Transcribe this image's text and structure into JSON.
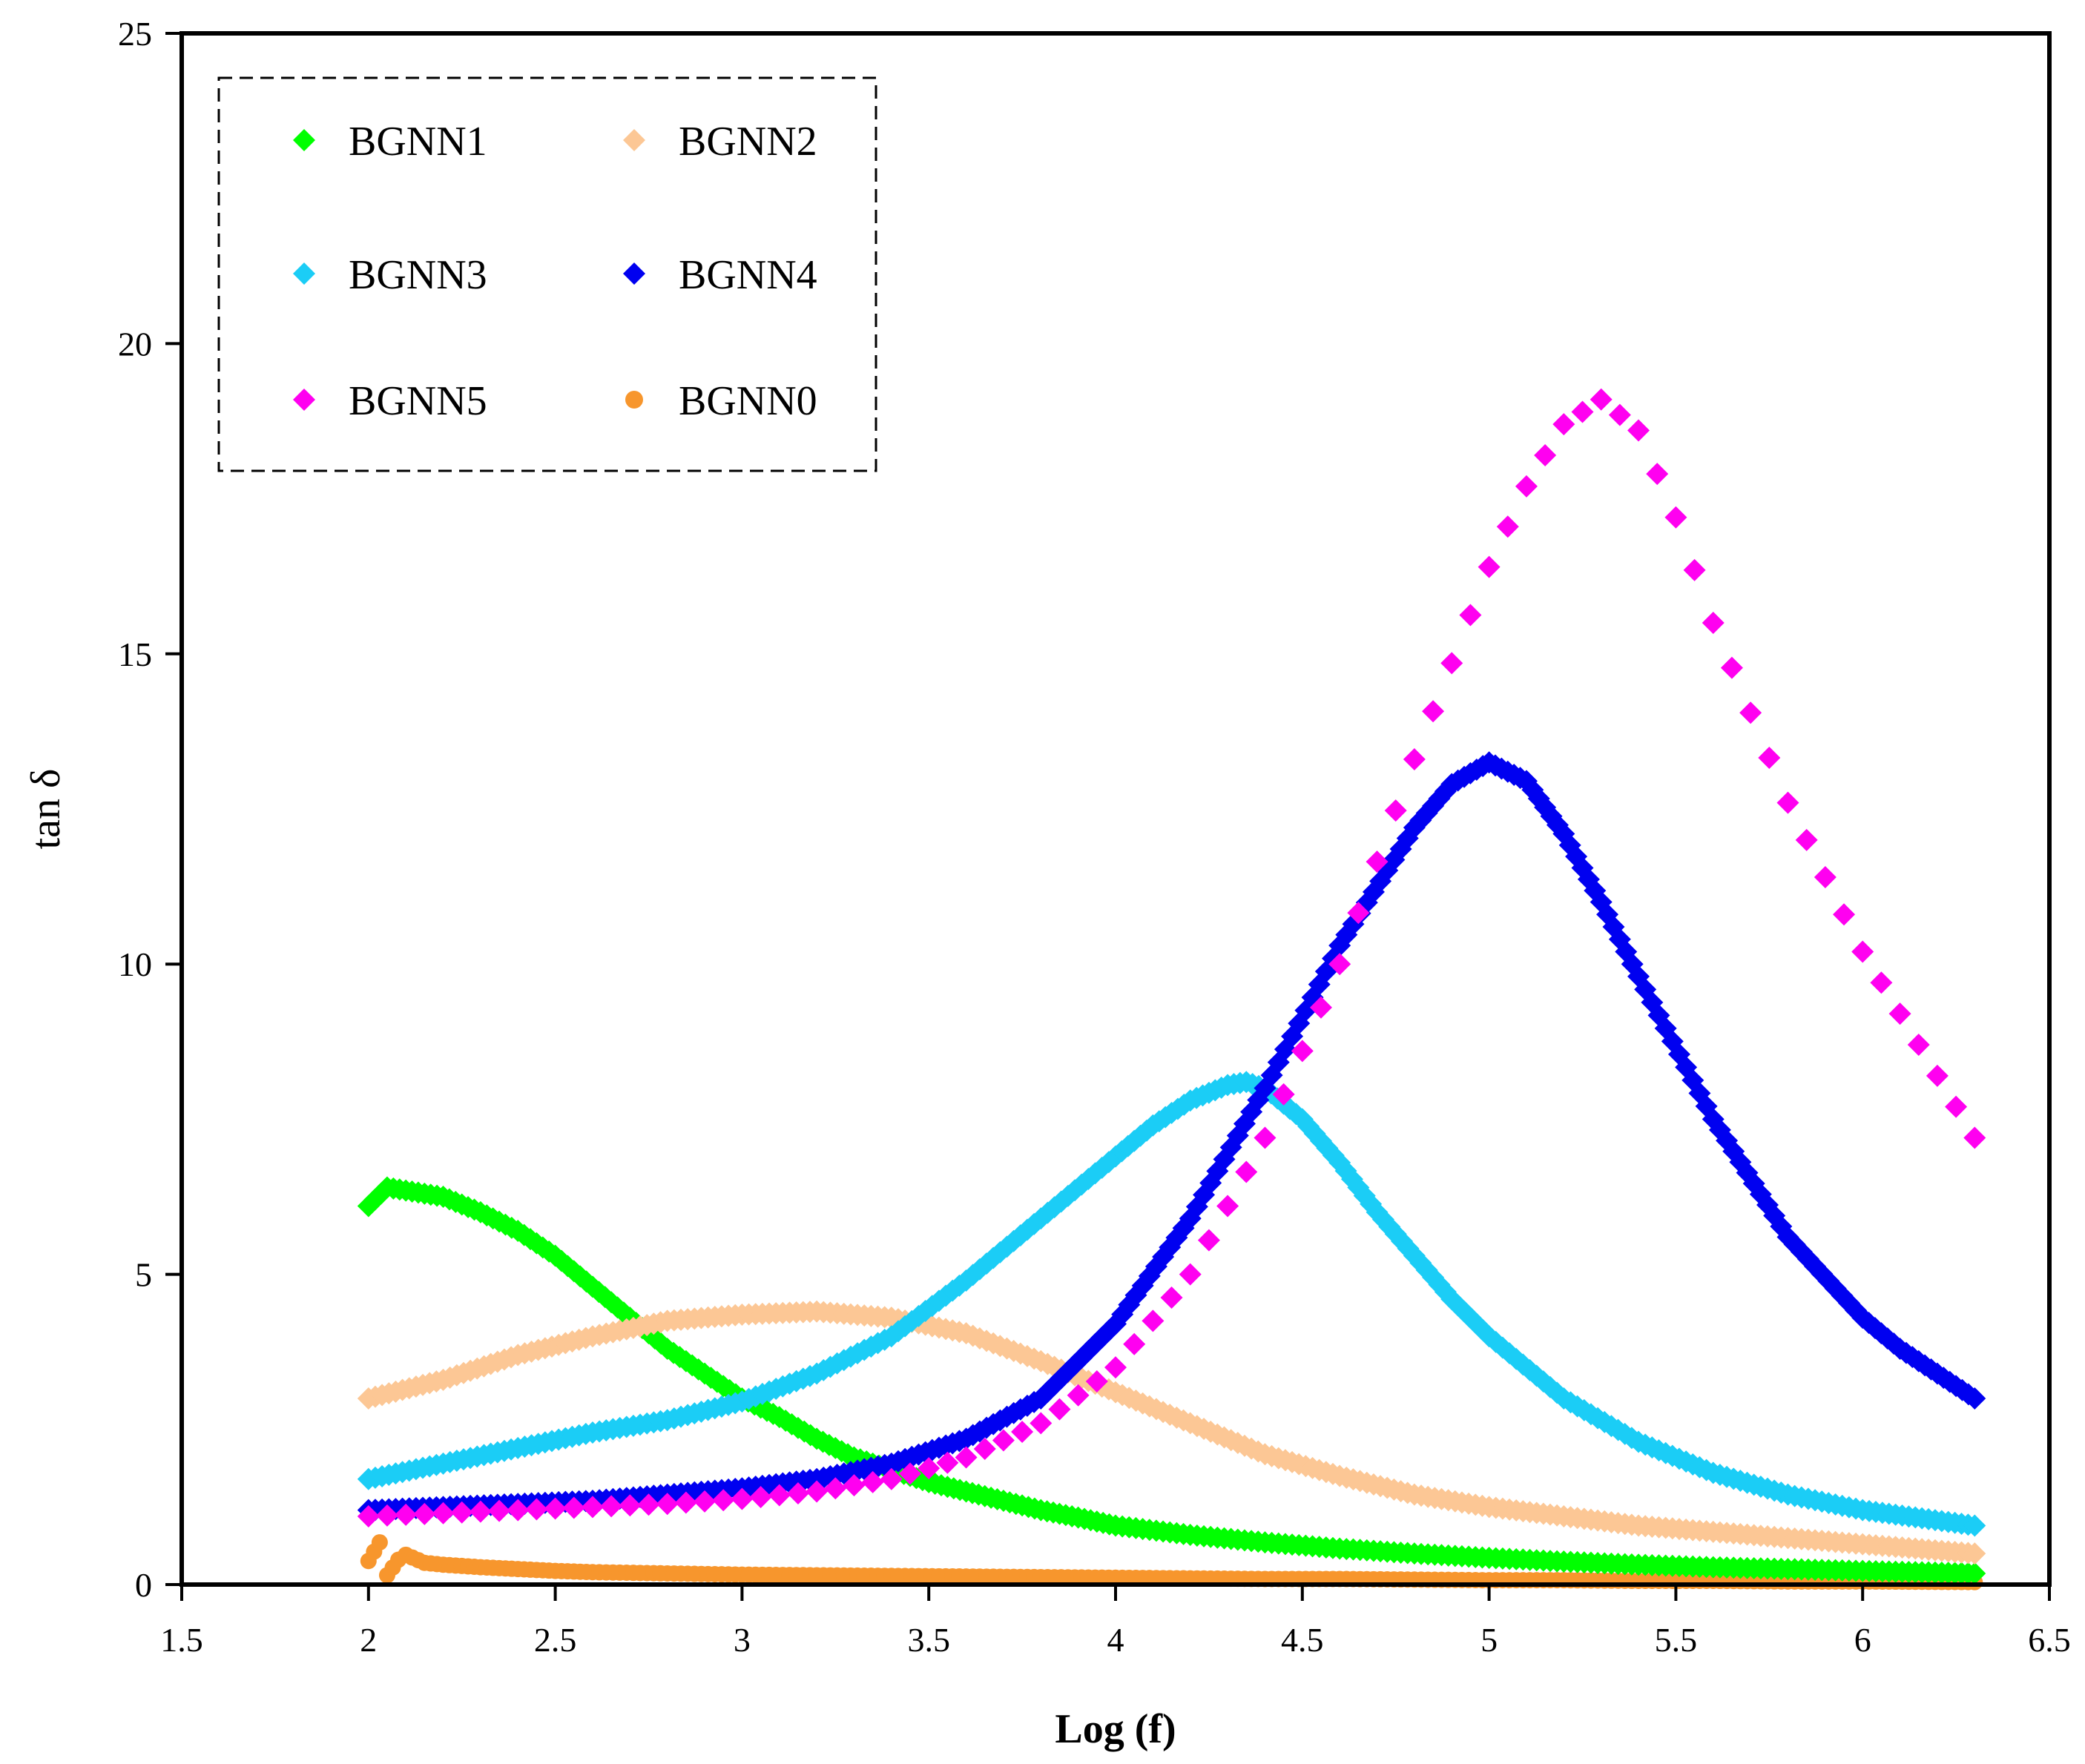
{
  "chart_data": {
    "type": "scatter",
    "title": "",
    "xlabel": "Log (f)",
    "ylabel": "tan δ",
    "xlim": [
      1.5,
      6.5
    ],
    "ylim": [
      0,
      25
    ],
    "xticks": [
      1.5,
      2,
      2.5,
      3,
      3.5,
      4,
      4.5,
      5,
      5.5,
      6,
      6.5
    ],
    "xtick_labels": [
      "1.5",
      "2",
      "2.5",
      "3",
      "3.5",
      "4",
      "4.5",
      "5",
      "5.5",
      "6",
      "6.5"
    ],
    "yticks": [
      0,
      5,
      10,
      15,
      20,
      25
    ],
    "ytick_labels": [
      "0",
      "5",
      "10",
      "15",
      "20",
      "25"
    ],
    "grid": false,
    "legend_position": "top-left",
    "series": [
      {
        "name": "BGNN1",
        "color": "#00ff00",
        "marker": "diamond",
        "x": [
          2.0,
          2.05,
          2.1,
          2.2,
          2.3,
          2.4,
          2.5,
          2.6,
          2.7,
          2.8,
          2.9,
          3.0,
          3.1,
          3.2,
          3.3,
          3.4,
          3.5,
          3.6,
          3.7,
          3.8,
          3.9,
          4.0,
          4.2,
          4.4,
          4.6,
          4.8,
          5.0,
          5.2,
          5.4,
          5.6,
          5.8,
          6.0,
          6.3
        ],
        "y": [
          6.1,
          6.4,
          6.35,
          6.25,
          6.0,
          5.7,
          5.3,
          4.8,
          4.3,
          3.8,
          3.4,
          3.0,
          2.7,
          2.35,
          2.05,
          1.85,
          1.65,
          1.5,
          1.35,
          1.2,
          1.08,
          0.95,
          0.8,
          0.68,
          0.58,
          0.5,
          0.43,
          0.37,
          0.32,
          0.28,
          0.25,
          0.22,
          0.18
        ]
      },
      {
        "name": "BGNN2",
        "color": "#fcc795",
        "marker": "diamond",
        "x": [
          2.0,
          2.2,
          2.4,
          2.6,
          2.8,
          3.0,
          3.2,
          3.4,
          3.6,
          3.8,
          4.0,
          4.2,
          4.4,
          4.6,
          4.8,
          5.0,
          5.2,
          5.4,
          5.6,
          5.8,
          6.0,
          6.3
        ],
        "y": [
          3.0,
          3.3,
          3.7,
          4.0,
          4.25,
          4.35,
          4.4,
          4.3,
          4.05,
          3.6,
          3.1,
          2.6,
          2.1,
          1.75,
          1.45,
          1.25,
          1.1,
          0.95,
          0.85,
          0.75,
          0.65,
          0.5
        ]
      },
      {
        "name": "BGNN3",
        "color": "#1bcdf6",
        "marker": "diamond",
        "x": [
          2.0,
          2.2,
          2.4,
          2.6,
          2.8,
          3.0,
          3.2,
          3.4,
          3.6,
          3.8,
          4.0,
          4.1,
          4.2,
          4.3,
          4.35,
          4.4,
          4.5,
          4.6,
          4.7,
          4.8,
          4.9,
          5.0,
          5.2,
          5.4,
          5.6,
          5.8,
          6.0,
          6.3
        ],
        "y": [
          1.7,
          1.95,
          2.2,
          2.45,
          2.65,
          2.95,
          3.4,
          4.0,
          4.9,
          5.9,
          6.9,
          7.4,
          7.8,
          8.05,
          8.1,
          8.0,
          7.5,
          6.8,
          6.0,
          5.3,
          4.6,
          4.0,
          3.0,
          2.3,
          1.8,
          1.45,
          1.2,
          0.95
        ]
      },
      {
        "name": "BGNN4",
        "color": "#0000f0",
        "marker": "diamond",
        "x": [
          2.0,
          2.2,
          2.4,
          2.6,
          2.8,
          3.0,
          3.2,
          3.4,
          3.6,
          3.8,
          4.0,
          4.2,
          4.4,
          4.6,
          4.8,
          4.9,
          5.0,
          5.1,
          5.2,
          5.3,
          5.4,
          5.6,
          5.8,
          6.0,
          6.1,
          6.2,
          6.3
        ],
        "y": [
          1.2,
          1.25,
          1.3,
          1.35,
          1.45,
          1.55,
          1.7,
          1.95,
          2.35,
          3.0,
          4.2,
          5.9,
          8.0,
          10.3,
          12.2,
          12.9,
          13.25,
          12.95,
          12.1,
          11.0,
          9.8,
          7.5,
          5.6,
          4.3,
          3.8,
          3.4,
          3.0
        ]
      },
      {
        "name": "BGNN5",
        "color": "#ff00f0",
        "marker": "diamond",
        "x": [
          2.0,
          2.2,
          2.4,
          2.6,
          2.8,
          3.0,
          3.2,
          3.4,
          3.6,
          3.8,
          4.0,
          4.2,
          4.4,
          4.6,
          4.8,
          5.0,
          5.1,
          5.2,
          5.3,
          5.4,
          5.5,
          5.6,
          5.8,
          6.0,
          6.2,
          6.3
        ],
        "y": [
          1.1,
          1.15,
          1.2,
          1.25,
          1.3,
          1.38,
          1.5,
          1.7,
          2.05,
          2.6,
          3.5,
          5.0,
          7.2,
          10.0,
          13.3,
          16.4,
          17.7,
          18.7,
          19.1,
          18.6,
          17.2,
          15.5,
          12.6,
          10.2,
          8.2,
          7.2
        ]
      },
      {
        "name": "BGNN0",
        "color": "#f7962d",
        "marker": "circle",
        "x": [
          2.0,
          2.03,
          2.05,
          2.08,
          2.1,
          2.15,
          2.2,
          2.3,
          2.4,
          2.5,
          2.6,
          2.8,
          3.0,
          3.2,
          3.4,
          3.6,
          3.8,
          4.0,
          4.2,
          4.4,
          4.6,
          4.8,
          5.0,
          5.2,
          5.4,
          5.6,
          5.8,
          6.0,
          6.3
        ],
        "y": [
          0.38,
          0.68,
          0.15,
          0.4,
          0.48,
          0.35,
          0.32,
          0.28,
          0.25,
          0.22,
          0.2,
          0.18,
          0.16,
          0.15,
          0.14,
          0.13,
          0.12,
          0.11,
          0.1,
          0.09,
          0.09,
          0.08,
          0.07,
          0.07,
          0.06,
          0.06,
          0.05,
          0.05,
          0.04
        ]
      }
    ]
  },
  "legend": {
    "items": [
      {
        "label": "BGNN1"
      },
      {
        "label": "BGNN2"
      },
      {
        "label": "BGNN3"
      },
      {
        "label": "BGNN4"
      },
      {
        "label": "BGNN5"
      },
      {
        "label": "BGNN0"
      }
    ]
  }
}
